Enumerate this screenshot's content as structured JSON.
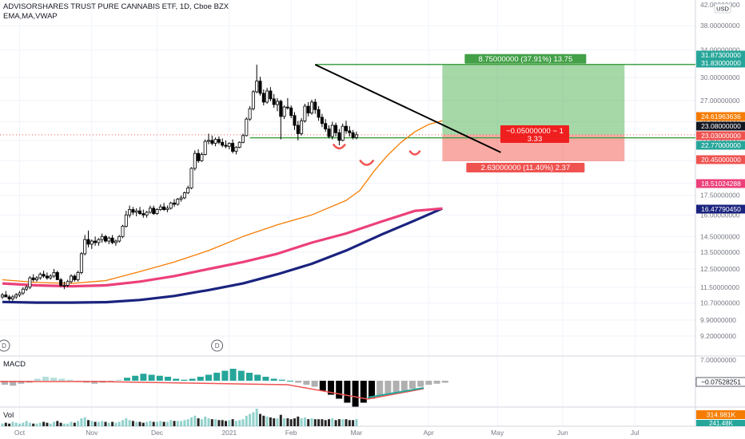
{
  "chart_data": {
    "type": "candlestick",
    "title": "ADVISORSHARES TRUST PURE CANNABIS ETF, 1D, Cboe BZX",
    "indicators_label": "EMA,MA,VWAP",
    "currency": "USD",
    "x_ticks": [
      "Oct",
      "Nov",
      "Dec",
      "2021",
      "Feb",
      "Mar",
      "Apr",
      "May",
      "Jun",
      "Jul"
    ],
    "y_ticks": [
      "42.00000000",
      "38.00000000",
      "34.00000000",
      "30.00000000",
      "27.00000000",
      "24.50000000",
      "22.50000000",
      "20.50000000",
      "18.50000000",
      "17.50000000",
      "16.00000000",
      "14.50000000",
      "13.50000000",
      "12.50000000",
      "11.50000000",
      "10.70000000",
      "9.90000000",
      "9.20000000",
      "7.00000000"
    ],
    "price_labels": [
      {
        "text": "31.87300000",
        "color": "#26a69a"
      },
      {
        "text": "31.83000000",
        "color": "#26a69a"
      },
      {
        "text": "24.61963636",
        "color": "#f57c00"
      },
      {
        "text": "23.08000000",
        "color": "#131722"
      },
      {
        "text": "23.03000000",
        "color": "#ef5350"
      },
      {
        "text": "22.77000000",
        "color": "#26a69a"
      },
      {
        "text": "20.45000000",
        "color": "#ef5350"
      },
      {
        "text": "18.51024288",
        "color": "#ec407a"
      },
      {
        "text": "16.47790450",
        "color": "#1a237e"
      }
    ],
    "position": {
      "entry": 23.08,
      "target": 31.83,
      "stop": 20.45,
      "target_label": "8.75000000 (37.91%) 13.75",
      "center_label_line1": "−0.05000000 ~ 1",
      "center_label_line2": "3.33",
      "stop_label": "2.63000000 (11.40%) 2.37"
    },
    "dividend_markers": [
      "D",
      "D"
    ],
    "macd": {
      "label": "MACD",
      "value_label": "−0.07528251",
      "ticks": [
        "0.00000000"
      ]
    },
    "volume": {
      "label": "Vol",
      "value_label": "314.981K",
      "value_label2": "241.48K"
    },
    "candles": [
      [
        11.0,
        11.2,
        10.9,
        11.1
      ],
      [
        11.1,
        11.3,
        11.0,
        11.0
      ],
      [
        11.0,
        11.1,
        10.8,
        10.9
      ],
      [
        10.9,
        11.1,
        10.8,
        11.0
      ],
      [
        11.0,
        11.2,
        10.9,
        11.1
      ],
      [
        11.1,
        11.3,
        11.0,
        11.2
      ],
      [
        11.2,
        11.5,
        11.1,
        11.4
      ],
      [
        11.4,
        11.6,
        11.3,
        11.5
      ],
      [
        11.5,
        12.1,
        11.4,
        12.0
      ],
      [
        12.0,
        12.2,
        11.8,
        11.9
      ],
      [
        11.9,
        12.1,
        11.8,
        12.0
      ],
      [
        12.0,
        12.3,
        11.9,
        12.2
      ],
      [
        12.2,
        12.4,
        12.0,
        12.1
      ],
      [
        12.1,
        12.3,
        11.9,
        12.0
      ],
      [
        12.0,
        12.2,
        11.9,
        12.1
      ],
      [
        12.1,
        12.5,
        12.0,
        12.3
      ],
      [
        12.3,
        12.4,
        11.9,
        11.9
      ],
      [
        11.9,
        12.0,
        11.5,
        11.6
      ],
      [
        11.6,
        11.8,
        11.4,
        11.6
      ],
      [
        11.6,
        11.9,
        11.5,
        11.8
      ],
      [
        11.8,
        12.2,
        11.7,
        12.1
      ],
      [
        12.1,
        12.2,
        11.8,
        11.9
      ],
      [
        11.9,
        12.4,
        11.8,
        12.3
      ],
      [
        12.3,
        13.5,
        12.2,
        13.4
      ],
      [
        13.4,
        14.6,
        13.3,
        14.3
      ],
      [
        14.3,
        14.9,
        13.8,
        14.0
      ],
      [
        14.0,
        14.3,
        13.7,
        14.2
      ],
      [
        14.2,
        14.5,
        13.9,
        14.1
      ],
      [
        14.1,
        14.4,
        13.9,
        14.3
      ],
      [
        14.3,
        14.7,
        14.1,
        14.5
      ],
      [
        14.5,
        14.6,
        14.1,
        14.2
      ],
      [
        14.2,
        14.5,
        14.0,
        14.4
      ],
      [
        14.4,
        14.6,
        14.0,
        14.1
      ],
      [
        14.1,
        14.3,
        13.9,
        14.2
      ],
      [
        14.2,
        14.6,
        14.1,
        14.5
      ],
      [
        14.5,
        15.3,
        14.4,
        15.2
      ],
      [
        15.2,
        16.3,
        15.1,
        16.0
      ],
      [
        16.0,
        16.7,
        15.8,
        16.4
      ],
      [
        16.4,
        16.6,
        16.0,
        16.2
      ],
      [
        16.2,
        16.5,
        15.9,
        16.3
      ],
      [
        16.3,
        16.6,
        16.0,
        16.1
      ],
      [
        16.1,
        16.4,
        15.8,
        16.0
      ],
      [
        16.0,
        16.3,
        15.8,
        16.2
      ],
      [
        16.2,
        16.7,
        16.1,
        16.5
      ],
      [
        16.5,
        16.7,
        16.0,
        16.1
      ],
      [
        16.1,
        16.5,
        16.0,
        16.4
      ],
      [
        16.4,
        16.8,
        16.3,
        16.6
      ],
      [
        16.6,
        16.9,
        16.3,
        16.4
      ],
      [
        16.4,
        16.7,
        16.2,
        16.5
      ],
      [
        16.5,
        17.0,
        16.4,
        16.9
      ],
      [
        16.9,
        17.2,
        16.6,
        16.8
      ],
      [
        16.8,
        17.3,
        16.7,
        17.2
      ],
      [
        17.2,
        17.5,
        17.0,
        17.3
      ],
      [
        17.3,
        17.8,
        17.2,
        17.7
      ],
      [
        17.7,
        18.3,
        17.6,
        18.1
      ],
      [
        18.1,
        19.9,
        18.0,
        19.8
      ],
      [
        19.8,
        21.5,
        19.6,
        21.2
      ],
      [
        21.2,
        21.6,
        20.3,
        20.5
      ],
      [
        20.5,
        21.3,
        20.4,
        21.1
      ],
      [
        21.1,
        22.6,
        21.0,
        22.4
      ],
      [
        22.4,
        23.2,
        22.1,
        22.5
      ],
      [
        22.5,
        23.0,
        22.0,
        22.2
      ],
      [
        22.2,
        22.8,
        21.9,
        22.6
      ],
      [
        22.6,
        22.9,
        22.1,
        22.3
      ],
      [
        22.3,
        22.7,
        21.8,
        22.0
      ],
      [
        22.0,
        22.5,
        21.7,
        21.9
      ],
      [
        21.9,
        22.3,
        21.6,
        22.2
      ],
      [
        22.2,
        22.6,
        21.2,
        21.4
      ],
      [
        21.4,
        21.9,
        21.1,
        21.8
      ],
      [
        21.8,
        22.4,
        21.7,
        22.3
      ],
      [
        22.3,
        23.2,
        22.2,
        23.0
      ],
      [
        23.0,
        25.0,
        22.9,
        24.8
      ],
      [
        24.8,
        26.3,
        24.6,
        26.0
      ],
      [
        26.0,
        28.3,
        25.8,
        28.1
      ],
      [
        28.1,
        31.8,
        27.9,
        29.5
      ],
      [
        29.5,
        30.1,
        27.6,
        27.9
      ],
      [
        27.9,
        28.4,
        26.4,
        26.8
      ],
      [
        26.8,
        28.6,
        26.6,
        28.2
      ],
      [
        28.2,
        28.7,
        26.9,
        27.2
      ],
      [
        27.2,
        27.8,
        26.1,
        26.5
      ],
      [
        26.5,
        27.3,
        25.7,
        26.9
      ],
      [
        26.9,
        27.1,
        22.6,
        25.1
      ],
      [
        25.1,
        26.4,
        24.8,
        26.2
      ],
      [
        26.2,
        27.3,
        25.9,
        26.1
      ],
      [
        26.1,
        26.4,
        24.9,
        25.2
      ],
      [
        25.2,
        25.6,
        23.6,
        24.1
      ],
      [
        24.1,
        24.6,
        22.5,
        23.2
      ],
      [
        23.2,
        24.9,
        23.0,
        24.6
      ],
      [
        24.6,
        26.6,
        24.4,
        26.3
      ],
      [
        26.3,
        26.8,
        25.1,
        25.5
      ],
      [
        25.5,
        27.1,
        25.3,
        26.8
      ],
      [
        26.8,
        27.2,
        25.4,
        25.9
      ],
      [
        25.9,
        26.3,
        24.6,
        25.0
      ],
      [
        25.0,
        25.4,
        23.9,
        24.3
      ],
      [
        24.3,
        24.8,
        23.4,
        23.7
      ],
      [
        23.7,
        24.1,
        22.7,
        22.9
      ],
      [
        22.9,
        24.5,
        22.6,
        24.1
      ],
      [
        24.1,
        24.4,
        22.9,
        23.3
      ],
      [
        23.3,
        23.7,
        22.0,
        22.5
      ],
      [
        22.5,
        24.3,
        22.4,
        24.0
      ],
      [
        24.0,
        24.6,
        23.2,
        23.5
      ],
      [
        23.5,
        24.0,
        22.9,
        23.3
      ],
      [
        23.3,
        23.6,
        22.6,
        22.8
      ],
      [
        22.8,
        23.4,
        22.6,
        23.08
      ]
    ],
    "ema50": [
      [
        0,
        11.9
      ],
      [
        10,
        11.75
      ],
      [
        20,
        11.7
      ],
      [
        30,
        11.85
      ],
      [
        40,
        12.35
      ],
      [
        50,
        12.9
      ],
      [
        60,
        13.6
      ],
      [
        70,
        14.5
      ],
      [
        80,
        15.3
      ],
      [
        90,
        16.0
      ],
      [
        100,
        17.1
      ],
      [
        104,
        17.9
      ],
      [
        108,
        19.5
      ],
      [
        112,
        21.0
      ],
      [
        116,
        22.3
      ],
      [
        120,
        23.4
      ],
      [
        124,
        24.2
      ],
      [
        128,
        24.62
      ]
    ],
    "ma100": [
      [
        0,
        11.7
      ],
      [
        10,
        11.6
      ],
      [
        20,
        11.55
      ],
      [
        30,
        11.6
      ],
      [
        40,
        11.8
      ],
      [
        50,
        12.1
      ],
      [
        60,
        12.5
      ],
      [
        70,
        12.9
      ],
      [
        80,
        13.4
      ],
      [
        90,
        14.1
      ],
      [
        100,
        14.7
      ],
      [
        110,
        15.5
      ],
      [
        120,
        16.3
      ],
      [
        128,
        16.48
      ]
    ],
    "ma200": [
      [
        0,
        10.75
      ],
      [
        10,
        10.72
      ],
      [
        20,
        10.72
      ],
      [
        30,
        10.74
      ],
      [
        40,
        10.85
      ],
      [
        50,
        11.05
      ],
      [
        60,
        11.35
      ],
      [
        70,
        11.7
      ],
      [
        80,
        12.2
      ],
      [
        90,
        12.8
      ],
      [
        100,
        13.6
      ],
      [
        110,
        14.6
      ],
      [
        120,
        15.6
      ],
      [
        128,
        16.48
      ]
    ],
    "trendline": [
      [
        91,
        31.8
      ],
      [
        145,
        21.3
      ]
    ],
    "resistance_line": [
      [
        72,
        22.77
      ],
      [
        128,
        22.77
      ]
    ],
    "position_x": [
      128,
      181
    ],
    "horizon_x": 215,
    "macd_hist": [
      -0.2,
      -0.25,
      -0.15,
      -0.1,
      0.1,
      0.2,
      0.15,
      0.1,
      0.05,
      -0.05,
      -0.1,
      -0.15,
      -0.1,
      -0.05,
      0.05,
      0.15,
      0.25,
      0.35,
      0.3,
      0.25,
      0.2,
      0.1,
      0.05,
      0.1,
      0.2,
      0.3,
      0.4,
      0.5,
      0.6,
      0.5,
      0.4,
      0.3,
      0.2,
      0.1,
      0.05,
      0.0,
      -0.1,
      -0.2,
      -0.3,
      -0.5,
      -0.7,
      -0.9,
      -1.1,
      -1.3,
      -1.1,
      -0.9,
      -0.8,
      -0.7,
      -0.6,
      -0.5,
      -0.4,
      -0.3,
      -0.2,
      -0.15,
      -0.1
    ],
    "volume_bars": [
      3,
      4,
      3,
      5,
      4,
      3,
      4,
      6,
      4,
      3,
      3,
      4,
      5,
      4,
      3,
      5,
      6,
      4,
      3,
      3,
      5,
      4,
      6,
      9,
      10,
      7,
      6,
      5,
      5,
      6,
      5,
      4,
      5,
      4,
      5,
      7,
      9,
      7,
      6,
      5,
      5,
      4,
      5,
      6,
      5,
      5,
      6,
      5,
      5,
      7,
      6,
      6,
      6,
      7,
      8,
      10,
      12,
      9,
      8,
      11,
      9,
      8,
      8,
      7,
      7,
      6,
      7,
      8,
      6,
      7,
      8,
      12,
      14,
      16,
      20,
      14,
      12,
      11,
      10,
      9,
      9,
      13,
      9,
      9,
      8,
      9,
      11,
      9,
      10,
      8,
      9,
      8,
      8,
      8,
      7,
      8,
      9,
      7,
      8,
      8,
      8,
      7,
      7,
      8
    ]
  }
}
